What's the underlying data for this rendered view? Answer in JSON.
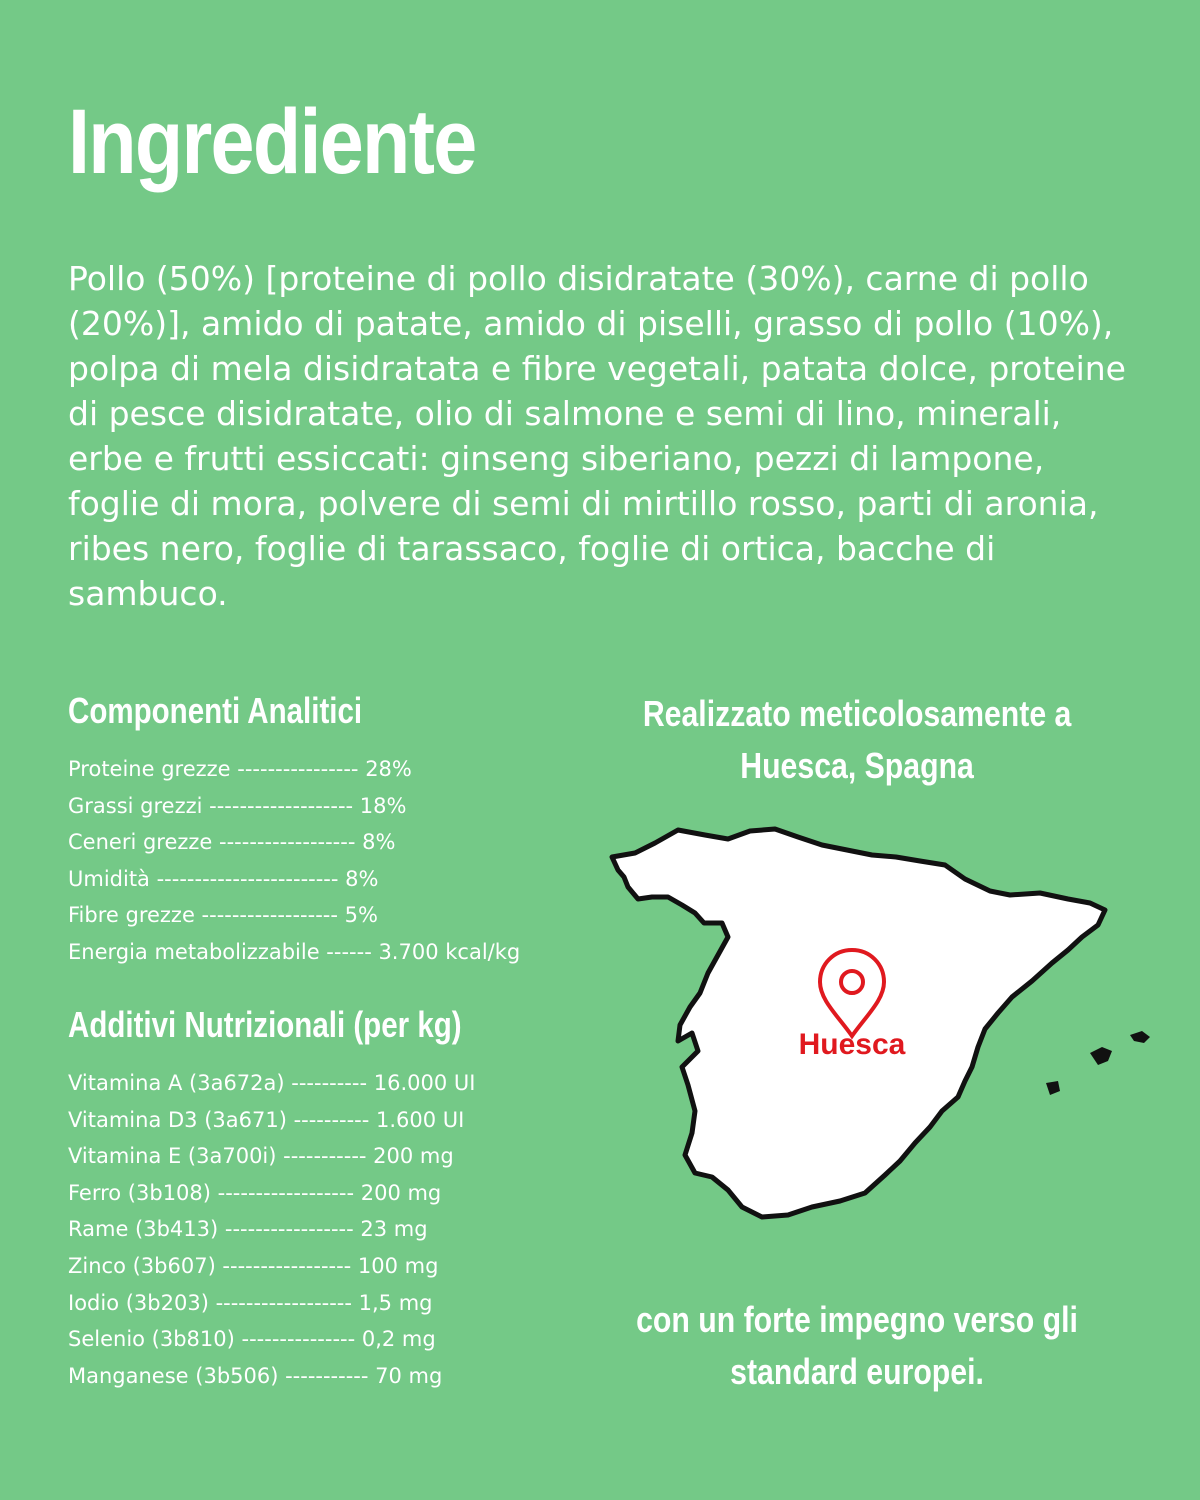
{
  "title": "Ingrediente",
  "ingredients_text": "Pollo (50%) [proteine di pollo disidratate (30%), carne di pollo (20%)], amido di patate, amido di piselli, grasso di pollo (10%), polpa di mela disidratata e fibre vegetali, patata dolce, proteine di pesce disidratate, olio di salmone e semi di lino, minerali, erbe e frutti essiccati: ginseng siberiano, pezzi di lampone, foglie di mora, polvere di semi di mirtillo rosso, parti di aronia, ribes nero, foglie di tarassaco, foglie di ortica, bacche di sambuco.",
  "analitici": {
    "heading": "Componenti Analitici",
    "rows": [
      "Proteine grezze ---------------- 28%",
      "Grassi grezzi ------------------- 18%",
      "Ceneri grezze ------------------ 8%",
      "Umidità ------------------------ 8%",
      "Fibre grezze ------------------ 5%",
      "Energia metabolizzabile ------ 3.700 kcal/kg"
    ]
  },
  "additivi": {
    "heading": "Additivi Nutrizionali (per kg)",
    "rows": [
      "Vitamina A (3a672a) ---------- 16.000 UI",
      "Vitamina D3 (3a671) ---------- 1.600 UI",
      "Vitamina E (3a700i) ----------- 200 mg",
      "Ferro (3b108) ------------------ 200 mg",
      "Rame (3b413) ----------------- 23 mg",
      "Zinco (3b607) ----------------- 100 mg",
      "Iodio (3b203) ------------------ 1,5 mg",
      "Selenio (3b810) --------------- 0,2 mg",
      "Manganese (3b506) ----------- 70 mg"
    ]
  },
  "made_in": {
    "line1": "Realizzato meticolosamente a",
    "line2": "Huesca, Spagna"
  },
  "map": {
    "pin_label": "Huesca",
    "pin_color": "#e0191f",
    "land_color": "#ffffff",
    "outline_color": "#111111"
  },
  "commitment": {
    "line1": "con un forte impegno verso gli",
    "line2": "standard europei."
  }
}
